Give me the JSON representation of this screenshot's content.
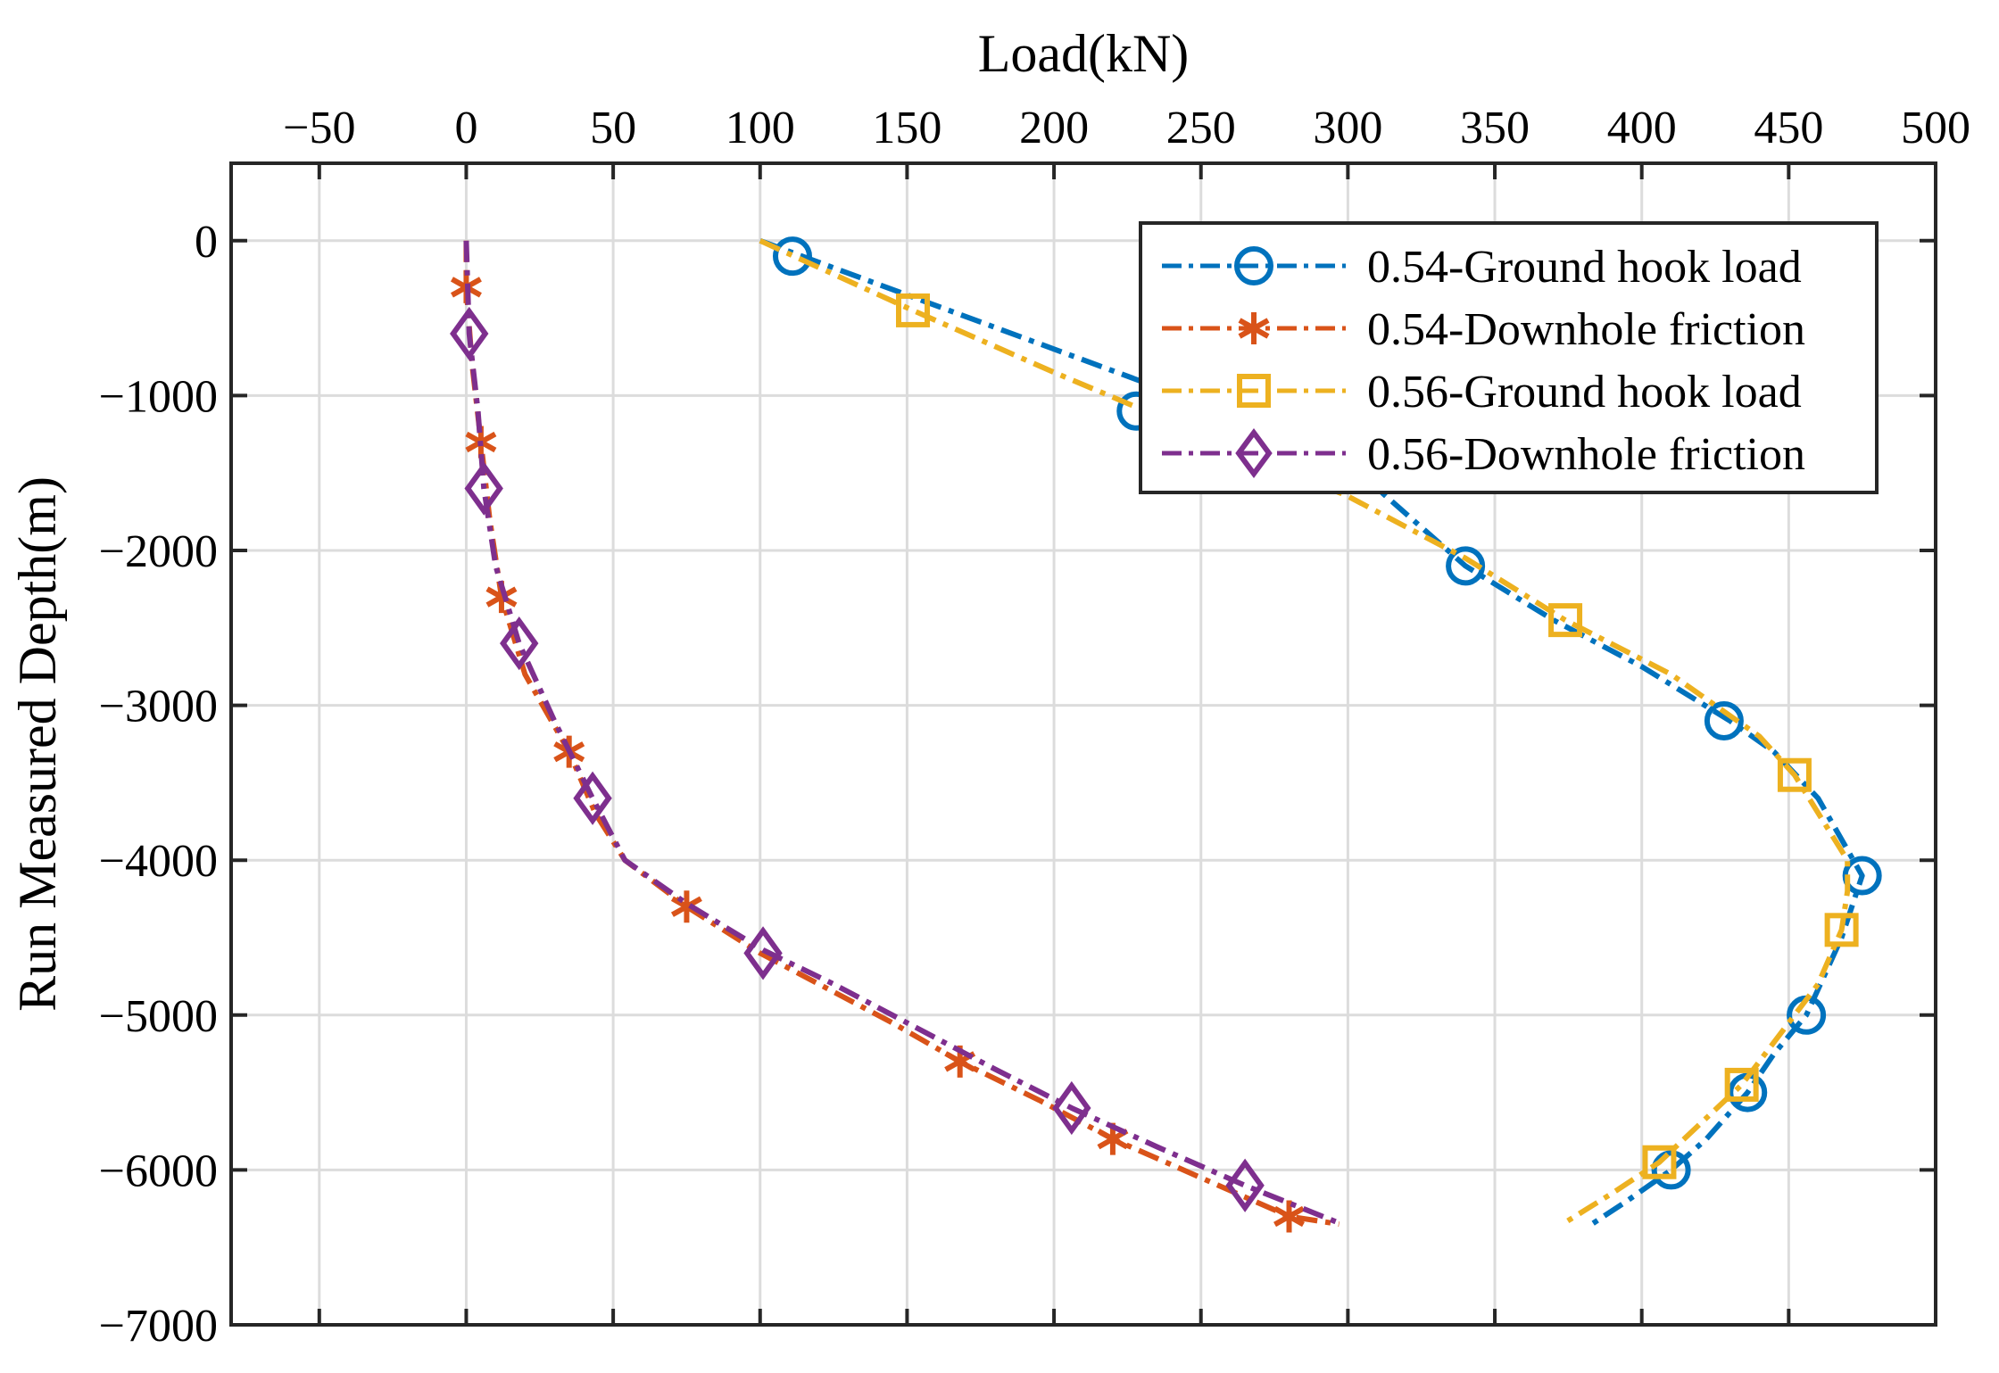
{
  "chart_data": {
    "type": "line",
    "title": "",
    "xlabel": "Load(kN)",
    "ylabel": "Run Measured Depth(m)",
    "xlim": [
      -80,
      500
    ],
    "ylim": [
      -7000,
      500
    ],
    "x_axis_position": "top",
    "grid": true,
    "legend_position": "top-right",
    "xticks": [
      -50,
      0,
      50,
      100,
      150,
      200,
      250,
      300,
      350,
      400,
      450,
      500
    ],
    "yticks": [
      0,
      -1000,
      -2000,
      -3000,
      -4000,
      -5000,
      -6000,
      -7000
    ],
    "xtick_labels": [
      "−50",
      "0",
      "50",
      "100",
      "150",
      "200",
      "250",
      "300",
      "350",
      "400",
      "450",
      "500"
    ],
    "ytick_labels": [
      "0",
      "−1000",
      "−2000",
      "−3000",
      "−4000",
      "−5000",
      "−6000",
      "−7000"
    ],
    "series": [
      {
        "name": "0.54-Ground hook load",
        "color": "#0072BD",
        "marker": "circle",
        "curve": [
          [
            100,
            0
          ],
          [
            150,
            -350
          ],
          [
            200,
            -700
          ],
          [
            250,
            -1050
          ],
          [
            280,
            -1300
          ],
          [
            310,
            -1600
          ],
          [
            340,
            -2100
          ],
          [
            370,
            -2450
          ],
          [
            400,
            -2750
          ],
          [
            430,
            -3100
          ],
          [
            445,
            -3300
          ],
          [
            460,
            -3600
          ],
          [
            472,
            -4000
          ],
          [
            475,
            -4100
          ],
          [
            468,
            -4500
          ],
          [
            456,
            -5000
          ],
          [
            445,
            -5250
          ],
          [
            436,
            -5500
          ],
          [
            422,
            -5800
          ],
          [
            410,
            -6000
          ],
          [
            395,
            -6200
          ],
          [
            383,
            -6350
          ]
        ],
        "markers": [
          [
            111,
            -100
          ],
          [
            228,
            -1100
          ],
          [
            340,
            -2100
          ],
          [
            428,
            -3100
          ],
          [
            475,
            -4100
          ],
          [
            456,
            -5000
          ],
          [
            436,
            -5500
          ],
          [
            410,
            -6000
          ]
        ]
      },
      {
        "name": "0.54-Downhole friction",
        "color": "#D95319",
        "marker": "asterisk",
        "curve": [
          [
            0,
            0
          ],
          [
            0,
            -300
          ],
          [
            2,
            -800
          ],
          [
            5,
            -1300
          ],
          [
            8,
            -1800
          ],
          [
            12,
            -2300
          ],
          [
            20,
            -2800
          ],
          [
            35,
            -3300
          ],
          [
            44,
            -3700
          ],
          [
            54,
            -4000
          ],
          [
            75,
            -4300
          ],
          [
            100,
            -4600
          ],
          [
            120,
            -4800
          ],
          [
            145,
            -5050
          ],
          [
            168,
            -5300
          ],
          [
            195,
            -5550
          ],
          [
            220,
            -5800
          ],
          [
            250,
            -6050
          ],
          [
            280,
            -6300
          ],
          [
            297,
            -6350
          ]
        ],
        "markers": [
          [
            0,
            -300
          ],
          [
            5,
            -1300
          ],
          [
            12,
            -2300
          ],
          [
            35,
            -3300
          ],
          [
            75,
            -4300
          ],
          [
            168,
            -5300
          ],
          [
            220,
            -5800
          ],
          [
            280,
            -6300
          ]
        ]
      },
      {
        "name": "0.56-Ground hook load",
        "color": "#EDB120",
        "marker": "square",
        "curve": [
          [
            100,
            0
          ],
          [
            152,
            -450
          ],
          [
            200,
            -850
          ],
          [
            250,
            -1250
          ],
          [
            300,
            -1650
          ],
          [
            340,
            -2050
          ],
          [
            374,
            -2450
          ],
          [
            410,
            -2800
          ],
          [
            440,
            -3200
          ],
          [
            452,
            -3450
          ],
          [
            470,
            -4000
          ],
          [
            470,
            -4200
          ],
          [
            468,
            -4450
          ],
          [
            460,
            -4800
          ],
          [
            450,
            -5050
          ],
          [
            434,
            -5450
          ],
          [
            420,
            -5700
          ],
          [
            406,
            -5950
          ],
          [
            390,
            -6150
          ],
          [
            373,
            -6350
          ]
        ],
        "markers": [
          [
            152,
            -450
          ],
          [
            374,
            -2450
          ],
          [
            452,
            -3450
          ],
          [
            468,
            -4450
          ],
          [
            434,
            -5450
          ],
          [
            406,
            -5950
          ]
        ]
      },
      {
        "name": "0.56-Downhole friction",
        "color": "#7E2F8E",
        "marker": "diamond",
        "curve": [
          [
            0,
            0
          ],
          [
            1,
            -600
          ],
          [
            4,
            -1100
          ],
          [
            6,
            -1600
          ],
          [
            10,
            -2100
          ],
          [
            18,
            -2600
          ],
          [
            30,
            -3100
          ],
          [
            43,
            -3600
          ],
          [
            54,
            -4000
          ],
          [
            75,
            -4280
          ],
          [
            101,
            -4580
          ],
          [
            125,
            -4800
          ],
          [
            150,
            -5050
          ],
          [
            180,
            -5350
          ],
          [
            206,
            -5600
          ],
          [
            235,
            -5850
          ],
          [
            265,
            -6100
          ],
          [
            298,
            -6350
          ]
        ],
        "markers": [
          [
            1,
            -600
          ],
          [
            6,
            -1600
          ],
          [
            18,
            -2600
          ],
          [
            43,
            -3600
          ],
          [
            101,
            -4600
          ],
          [
            206,
            -5600
          ],
          [
            265,
            -6100
          ]
        ]
      }
    ]
  }
}
